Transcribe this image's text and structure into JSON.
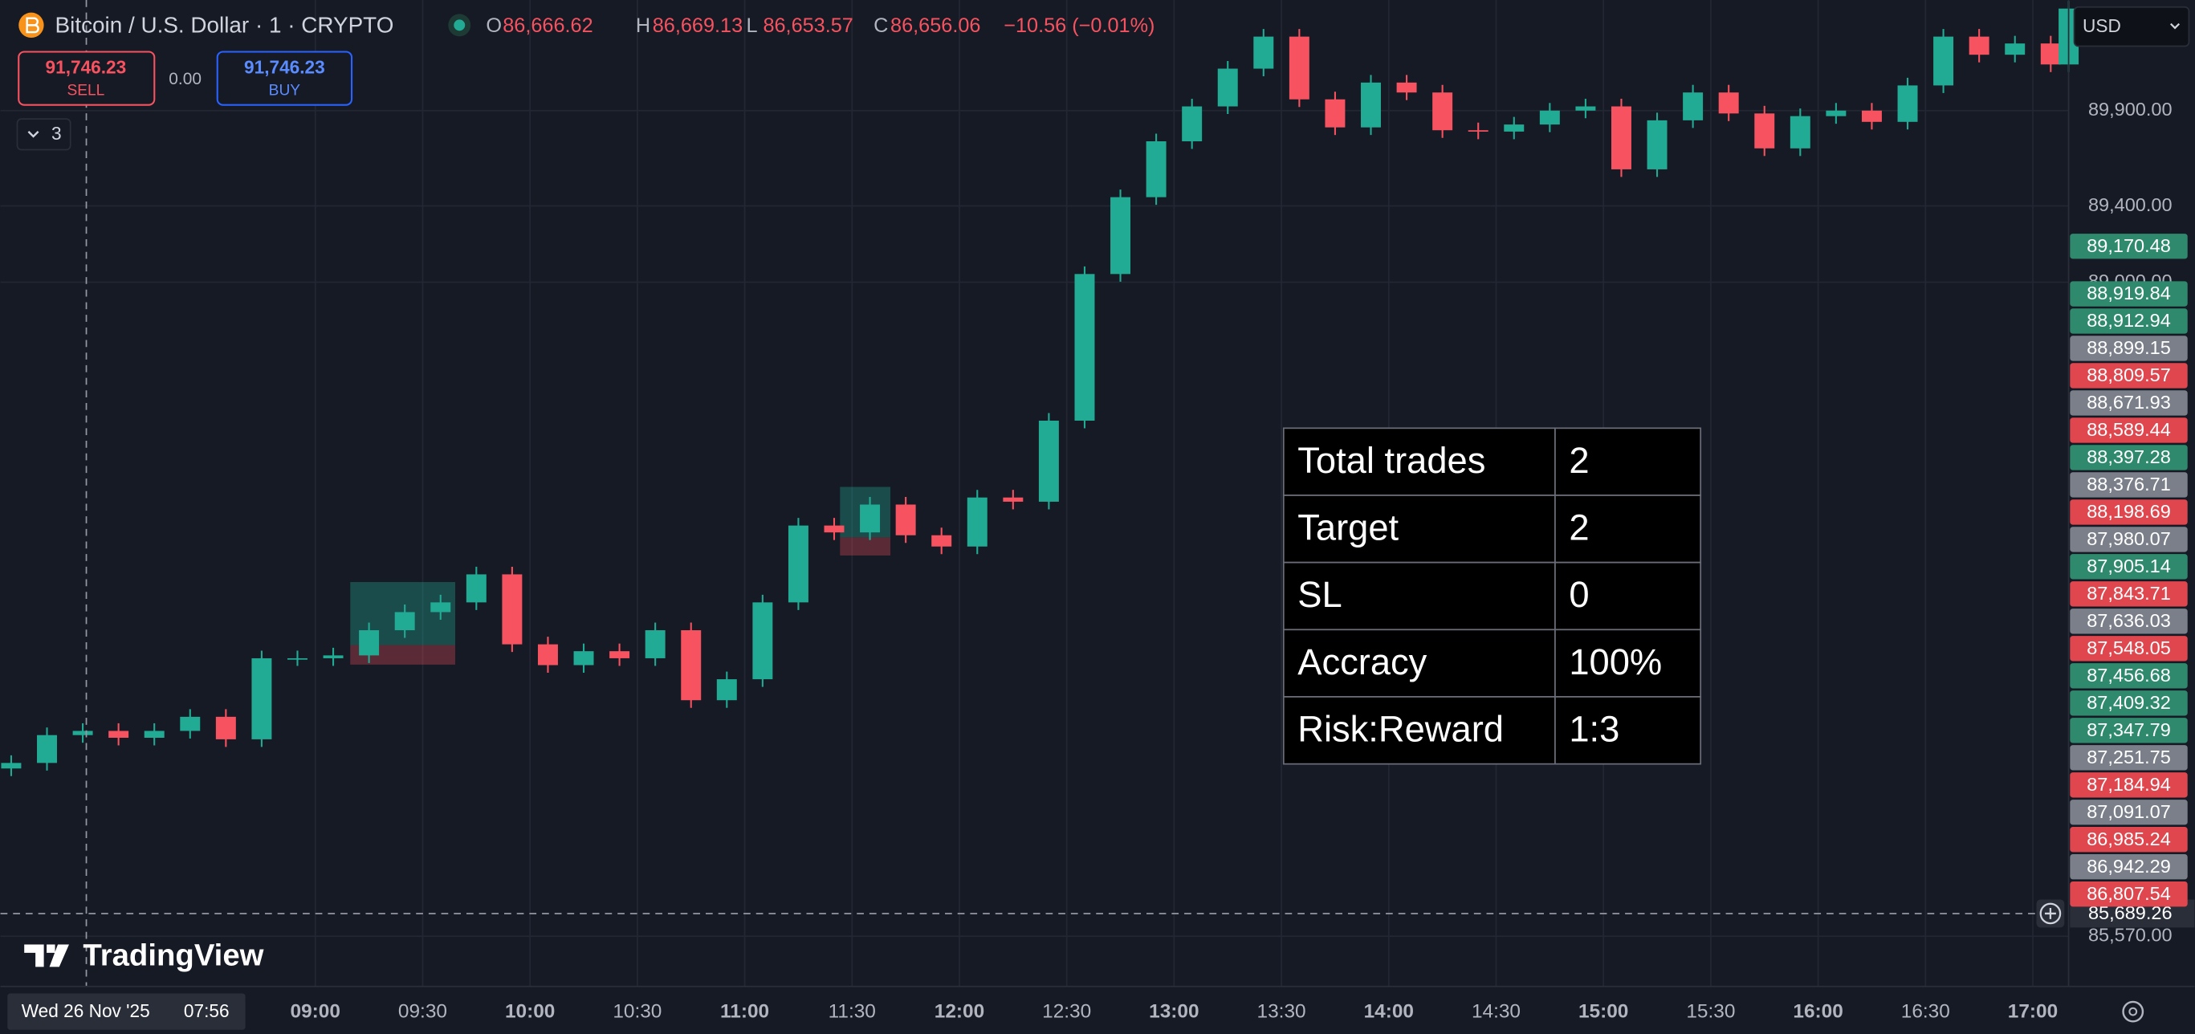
{
  "header": {
    "symbol": "Bitcoin / U.S. Dollar · 1 · CRYPTO",
    "ohlc": [
      {
        "key": "O",
        "value": "86,666.62"
      },
      {
        "key": "H",
        "value": "86,669.13"
      },
      {
        "key": "L",
        "value": "86,653.57"
      },
      {
        "key": "C",
        "value": "86,656.06"
      }
    ],
    "change": "−10.56 (−0.01%)",
    "sell": {
      "price": "91,746.23",
      "label": "SELL"
    },
    "spread": "0.00",
    "buy": {
      "price": "91,746.23",
      "label": "BUY"
    },
    "indicators": "3",
    "currency": "USD"
  },
  "brand": "TradingView",
  "crosshair": {
    "date": "Wed 26 Nov '25",
    "time": "07:56",
    "price": {
      "value": 85689.26,
      "label": "85,689.26"
    }
  },
  "chart_data": {
    "type": "candlestick",
    "x": [
      "07:35",
      "07:45",
      "07:55",
      "08:05",
      "08:15",
      "08:25",
      "08:35",
      "08:45",
      "08:55",
      "09:05",
      "09:15",
      "09:25",
      "09:35",
      "09:45",
      "09:55",
      "10:05",
      "10:15",
      "10:25",
      "10:35",
      "10:45",
      "10:55",
      "11:05",
      "11:15",
      "11:25",
      "11:35",
      "11:45",
      "11:55",
      "12:05",
      "12:15",
      "12:25",
      "12:35",
      "12:45",
      "12:55",
      "13:05",
      "13:15",
      "13:25",
      "13:35",
      "13:45",
      "13:55",
      "14:05",
      "14:15",
      "14:25",
      "14:35",
      "14:45",
      "14:55",
      "15:05",
      "15:15",
      "15:25",
      "15:35",
      "15:45",
      "15:55",
      "16:05",
      "16:15",
      "16:25",
      "16:35",
      "16:45",
      "16:55",
      "17:05",
      "17:10"
    ],
    "open": [
      86450,
      86479,
      86625,
      86647,
      86611,
      86647,
      86721,
      86603,
      87028,
      87028,
      87043,
      87175,
      87270,
      87321,
      87468,
      87101,
      86992,
      87065,
      87028,
      87175,
      86808,
      86918,
      87321,
      87724,
      87688,
      87834,
      87673,
      87614,
      87871,
      87849,
      88274,
      89043,
      89446,
      89739,
      89922,
      90120,
      90288,
      89959,
      89812,
      90047,
      89995,
      89797,
      89790,
      89827,
      89900,
      89922,
      89592,
      89849,
      89995,
      89885,
      89702,
      89871,
      89900,
      89841,
      90032,
      90288,
      90193,
      90252,
      90142
    ],
    "high": [
      86519,
      86665,
      86687,
      86687,
      86687,
      86761,
      86761,
      87068,
      87068,
      87083,
      87215,
      87310,
      87361,
      87508,
      87508,
      87141,
      87105,
      87105,
      87215,
      87215,
      86958,
      87361,
      87764,
      87764,
      87874,
      87874,
      87713,
      87911,
      87911,
      88314,
      89083,
      89486,
      89779,
      89962,
      90160,
      90328,
      90328,
      89999,
      90087,
      90087,
      90035,
      89837,
      89867,
      89940,
      89962,
      89962,
      89889,
      90035,
      90035,
      89925,
      89911,
      89940,
      89940,
      90072,
      90328,
      90328,
      90292,
      90292,
      90475
    ],
    "low": [
      86410,
      86439,
      86585,
      86571,
      86571,
      86607,
      86563,
      86563,
      86988,
      86988,
      87003,
      87135,
      87230,
      87281,
      87061,
      86952,
      86952,
      86988,
      86988,
      86768,
      86768,
      86878,
      87281,
      87648,
      87648,
      87633,
      87574,
      87574,
      87809,
      87809,
      88234,
      89003,
      89406,
      89699,
      89882,
      90080,
      89919,
      89772,
      89772,
      89955,
      89757,
      89750,
      89750,
      89787,
      89860,
      89552,
      89552,
      89809,
      89845,
      89662,
      89662,
      89831,
      89801,
      89801,
      89992,
      90153,
      90153,
      90102,
      90102
    ],
    "close": [
      86479,
      86625,
      86647,
      86611,
      86647,
      86721,
      86603,
      87028,
      87028,
      87043,
      87175,
      87270,
      87321,
      87468,
      87101,
      86992,
      87065,
      87028,
      87175,
      86808,
      86918,
      87321,
      87724,
      87688,
      87834,
      87673,
      87614,
      87871,
      87849,
      88274,
      89043,
      89446,
      89739,
      89922,
      90120,
      90288,
      89959,
      89812,
      90047,
      89995,
      89797,
      89790,
      89827,
      89900,
      89922,
      89592,
      89849,
      89995,
      89885,
      89702,
      89871,
      89900,
      89841,
      90032,
      90288,
      90193,
      90252,
      90142,
      90435
    ],
    "up_color": "#22ab94",
    "down_color": "#f7525f",
    "xlim": [
      "07:32",
      "17:10"
    ],
    "xticks": [
      "09:00",
      "09:30",
      "10:00",
      "10:30",
      "11:00",
      "11:30",
      "12:00",
      "12:30",
      "13:00",
      "13:30",
      "14:00",
      "14:30",
      "15:00",
      "15:30",
      "16:00",
      "16:30",
      "17:00"
    ],
    "ylim": [
      85307,
      90480
    ],
    "yticks": [
      {
        "value": 85570,
        "label": "85,570.00"
      },
      {
        "value": 89000,
        "label": "89,000.00"
      },
      {
        "value": 89400,
        "label": "89,400.00"
      },
      {
        "value": 89900,
        "label": "89,900.00"
      }
    ],
    "grid": true
  },
  "price_tags": [
    {
      "label": "89,170.48",
      "color": "#2f8a6d"
    },
    {
      "label": "88,919.84",
      "color": "#2f8a6d"
    },
    {
      "label": "88,912.94",
      "color": "#2f8a6d"
    },
    {
      "label": "88,899.15",
      "color": "#7b7f89"
    },
    {
      "label": "88,809.57",
      "color": "#e0464e"
    },
    {
      "label": "88,671.93",
      "color": "#7b7f89"
    },
    {
      "label": "88,589.44",
      "color": "#e0464e"
    },
    {
      "label": "88,397.28",
      "color": "#2f8a6d"
    },
    {
      "label": "88,376.71",
      "color": "#7b7f89"
    },
    {
      "label": "88,198.69",
      "color": "#e0464e"
    },
    {
      "label": "87,980.07",
      "color": "#7b7f89"
    },
    {
      "label": "87,905.14",
      "color": "#2f8a6d"
    },
    {
      "label": "87,843.71",
      "color": "#e0464e"
    },
    {
      "label": "87,636.03",
      "color": "#7b7f89"
    },
    {
      "label": "87,548.05",
      "color": "#e0464e"
    },
    {
      "label": "87,456.68",
      "color": "#2f8a6d"
    },
    {
      "label": "87,409.32",
      "color": "#2f8a6d"
    },
    {
      "label": "87,347.79",
      "color": "#2f8a6d"
    },
    {
      "label": "87,251.75",
      "color": "#7b7f89"
    },
    {
      "label": "87,184.94",
      "color": "#e0464e"
    },
    {
      "label": "87,091.07",
      "color": "#7b7f89"
    },
    {
      "label": "86,985.24",
      "color": "#e0464e"
    },
    {
      "label": "86,942.29",
      "color": "#7b7f89"
    },
    {
      "label": "86,807.54",
      "color": "#e0464e"
    }
  ],
  "stats_table": {
    "rows": [
      [
        "Total trades",
        "2"
      ],
      [
        "Target",
        "2"
      ],
      [
        "SL",
        "0"
      ],
      [
        "Accracy",
        "100%"
      ],
      [
        "Risk:Reward",
        "1:3"
      ]
    ]
  }
}
